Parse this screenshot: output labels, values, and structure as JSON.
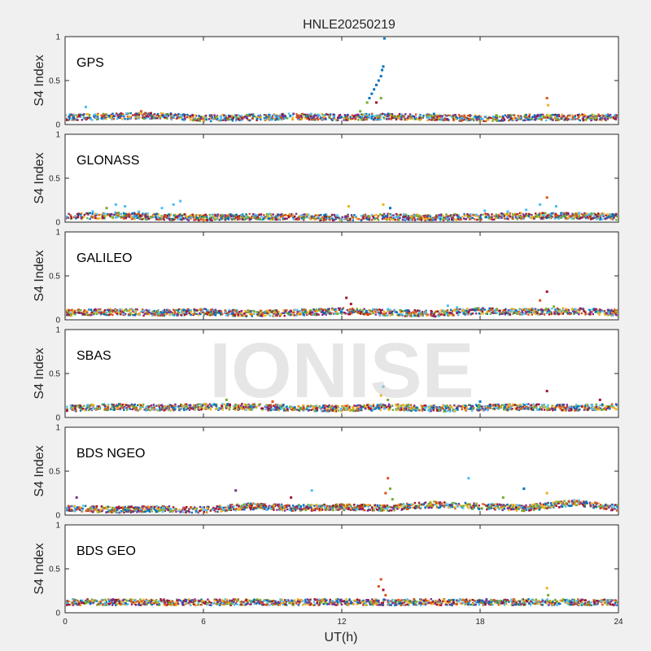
{
  "chart_data": {
    "type": "scatter",
    "title": "HNLE20250219",
    "xlabel": "UT(h)",
    "ylabel": "S4 Index",
    "xlim": [
      0,
      24
    ],
    "ylim": [
      0,
      1
    ],
    "xticks": [
      0,
      6,
      12,
      18,
      24
    ],
    "yticks": [
      0,
      0.5,
      1
    ],
    "ytick_labels": [
      "0",
      "0.5",
      "1"
    ],
    "grid": false,
    "watermark": "IONISE",
    "series_colors": [
      "#0072bd",
      "#d95319",
      "#edb120",
      "#7e2f8e",
      "#77ac30",
      "#4dbeee",
      "#a2142f"
    ],
    "panels": [
      {
        "name": "GPS",
        "baseline": [
          [
            0,
            0.08
          ],
          [
            2,
            0.09
          ],
          [
            4,
            0.1
          ],
          [
            6,
            0.07
          ],
          [
            8,
            0.08
          ],
          [
            10,
            0.09
          ],
          [
            12,
            0.08
          ],
          [
            14,
            0.09
          ],
          [
            16,
            0.08
          ],
          [
            18,
            0.07
          ],
          [
            20,
            0.08
          ],
          [
            22,
            0.08
          ],
          [
            24,
            0.08
          ]
        ],
        "points": [
          [
            0.9,
            0.2,
            5
          ],
          [
            3.3,
            0.15,
            1
          ],
          [
            12.8,
            0.15,
            4
          ],
          [
            13.1,
            0.25,
            4
          ],
          [
            13.2,
            0.3,
            0
          ],
          [
            13.3,
            0.35,
            0
          ],
          [
            13.4,
            0.4,
            0
          ],
          [
            13.5,
            0.45,
            0
          ],
          [
            13.6,
            0.5,
            0
          ],
          [
            13.7,
            0.55,
            0
          ],
          [
            13.75,
            0.62,
            0
          ],
          [
            13.8,
            0.66,
            0
          ],
          [
            13.85,
            0.98,
            0
          ],
          [
            13.5,
            0.25,
            6
          ],
          [
            13.7,
            0.3,
            4
          ],
          [
            20.9,
            0.3,
            1
          ],
          [
            20.95,
            0.22,
            2
          ],
          [
            16.0,
            0.12,
            0
          ]
        ]
      },
      {
        "name": "GLONASS",
        "baseline": [
          [
            0,
            0.06
          ],
          [
            2,
            0.08
          ],
          [
            4,
            0.06
          ],
          [
            6,
            0.05
          ],
          [
            8,
            0.06
          ],
          [
            10,
            0.06
          ],
          [
            12,
            0.05
          ],
          [
            14,
            0.06
          ],
          [
            16,
            0.05
          ],
          [
            18,
            0.06
          ],
          [
            20,
            0.07
          ],
          [
            22,
            0.07
          ],
          [
            24,
            0.06
          ]
        ],
        "points": [
          [
            1.2,
            0.12,
            5
          ],
          [
            1.8,
            0.16,
            4
          ],
          [
            2.2,
            0.2,
            5
          ],
          [
            2.6,
            0.18,
            5
          ],
          [
            3.2,
            0.12,
            5
          ],
          [
            4.2,
            0.16,
            5
          ],
          [
            4.7,
            0.2,
            5
          ],
          [
            5.0,
            0.24,
            5
          ],
          [
            12.3,
            0.18,
            2
          ],
          [
            13.8,
            0.2,
            2
          ],
          [
            14.1,
            0.16,
            0
          ],
          [
            18.2,
            0.13,
            5
          ],
          [
            19.2,
            0.12,
            5
          ],
          [
            20.0,
            0.14,
            5
          ],
          [
            20.6,
            0.2,
            5
          ],
          [
            20.9,
            0.28,
            1
          ],
          [
            21.3,
            0.18,
            5
          ],
          [
            22.3,
            0.1,
            5
          ],
          [
            23.3,
            0.08,
            5
          ]
        ]
      },
      {
        "name": "GALILEO",
        "baseline": [
          [
            0,
            0.08
          ],
          [
            2,
            0.09
          ],
          [
            4,
            0.08
          ],
          [
            6,
            0.09
          ],
          [
            8,
            0.07
          ],
          [
            10,
            0.08
          ],
          [
            12,
            0.1
          ],
          [
            14,
            0.08
          ],
          [
            16,
            0.07
          ],
          [
            18,
            0.1
          ],
          [
            20,
            0.09
          ],
          [
            22,
            0.1
          ],
          [
            24,
            0.08
          ]
        ],
        "points": [
          [
            12.2,
            0.25,
            6
          ],
          [
            12.4,
            0.18,
            6
          ],
          [
            14.0,
            0.12,
            5
          ],
          [
            16.6,
            0.16,
            5
          ],
          [
            17.0,
            0.14,
            5
          ],
          [
            19.3,
            0.1,
            5
          ],
          [
            20.6,
            0.22,
            1
          ],
          [
            20.9,
            0.32,
            6
          ],
          [
            21.2,
            0.15,
            4
          ],
          [
            22.0,
            0.12,
            2
          ],
          [
            23.0,
            0.12,
            3
          ]
        ]
      },
      {
        "name": "SBAS",
        "baseline": [
          [
            0,
            0.1
          ],
          [
            2,
            0.12
          ],
          [
            4,
            0.11
          ],
          [
            6,
            0.12
          ],
          [
            8,
            0.12
          ],
          [
            10,
            0.11
          ],
          [
            12,
            0.1
          ],
          [
            14,
            0.12
          ],
          [
            16,
            0.1
          ],
          [
            18,
            0.11
          ],
          [
            20,
            0.12
          ],
          [
            22,
            0.11
          ],
          [
            24,
            0.12
          ]
        ],
        "points": [
          [
            13.7,
            0.25,
            2
          ],
          [
            13.8,
            0.35,
            5
          ],
          [
            14.0,
            0.2,
            4
          ],
          [
            20.9,
            0.3,
            6
          ],
          [
            23.2,
            0.2,
            6
          ],
          [
            7.0,
            0.2,
            4
          ],
          [
            9.0,
            0.18,
            1
          ],
          [
            18.0,
            0.18,
            0
          ]
        ]
      },
      {
        "name": "BDS NGEO",
        "baseline": [
          [
            0,
            0.08
          ],
          [
            2,
            0.06
          ],
          [
            4,
            0.07
          ],
          [
            6,
            0.06
          ],
          [
            8,
            0.1
          ],
          [
            10,
            0.08
          ],
          [
            12,
            0.09
          ],
          [
            14,
            0.08
          ],
          [
            16,
            0.12
          ],
          [
            18,
            0.1
          ],
          [
            20,
            0.08
          ],
          [
            22,
            0.14
          ],
          [
            24,
            0.08
          ]
        ],
        "points": [
          [
            0.5,
            0.2,
            3
          ],
          [
            7.4,
            0.28,
            3
          ],
          [
            9.8,
            0.2,
            6
          ],
          [
            10.7,
            0.28,
            5
          ],
          [
            13.9,
            0.25,
            1
          ],
          [
            14.0,
            0.42,
            1
          ],
          [
            14.1,
            0.3,
            4
          ],
          [
            14.2,
            0.18,
            4
          ],
          [
            17.5,
            0.42,
            5
          ],
          [
            19.0,
            0.2,
            4
          ],
          [
            19.9,
            0.3,
            0
          ],
          [
            20.9,
            0.25,
            2
          ],
          [
            22.2,
            0.16,
            1
          ],
          [
            23.0,
            0.14,
            1
          ]
        ]
      },
      {
        "name": "BDS GEO",
        "baseline": [
          [
            0,
            0.12
          ],
          [
            4,
            0.12
          ],
          [
            8,
            0.12
          ],
          [
            12,
            0.12
          ],
          [
            16,
            0.12
          ],
          [
            20,
            0.12
          ],
          [
            24,
            0.12
          ]
        ],
        "points": [
          [
            13.6,
            0.3,
            1
          ],
          [
            13.7,
            0.38,
            1
          ],
          [
            13.8,
            0.26,
            6
          ],
          [
            13.9,
            0.2,
            1
          ],
          [
            20.9,
            0.28,
            2
          ],
          [
            20.95,
            0.2,
            4
          ]
        ]
      }
    ]
  }
}
